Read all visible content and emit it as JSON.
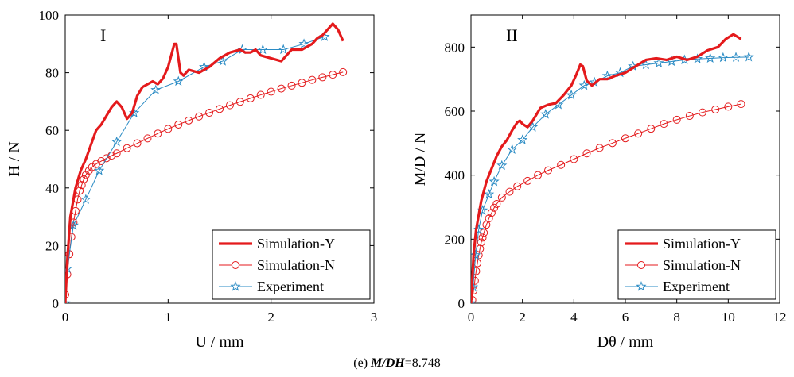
{
  "caption": {
    "prefix": "(e) ",
    "mdh_label": "M/DH",
    "value_text": "=8.748"
  },
  "colors": {
    "simY": "#e41a1c",
    "simN": "#e41a1c",
    "exp": "#2a8bc4",
    "axis": "#000000"
  },
  "chart_data": [
    {
      "type": "line",
      "panel_label": "I",
      "xlabel": "U / mm",
      "ylabel": "H / N",
      "xlim": [
        0,
        3
      ],
      "ylim": [
        0,
        100
      ],
      "xticks": [
        0,
        1,
        2,
        3
      ],
      "yticks": [
        0,
        20,
        40,
        60,
        80,
        100
      ],
      "grid": false,
      "legend_position": "bottom-right",
      "series": [
        {
          "name": "Simulation-Y",
          "style": "thick-line",
          "x": [
            0,
            0.02,
            0.05,
            0.1,
            0.15,
            0.2,
            0.25,
            0.3,
            0.35,
            0.4,
            0.45,
            0.5,
            0.55,
            0.6,
            0.65,
            0.7,
            0.75,
            0.8,
            0.85,
            0.9,
            0.95,
            1.0,
            1.03,
            1.06,
            1.08,
            1.1,
            1.12,
            1.15,
            1.2,
            1.3,
            1.4,
            1.5,
            1.6,
            1.7,
            1.75,
            1.8,
            1.85,
            1.9,
            2.0,
            2.1,
            2.15,
            2.2,
            2.3,
            2.4,
            2.45,
            2.5,
            2.55,
            2.6,
            2.65,
            2.7
          ],
          "y": [
            0,
            15,
            30,
            40,
            46,
            50,
            55,
            60,
            62,
            65,
            68,
            70,
            68,
            64,
            66,
            72,
            75,
            76,
            77,
            76,
            78,
            82,
            86,
            90,
            90,
            85,
            80,
            79,
            81,
            80,
            82,
            85,
            87,
            88,
            87,
            87,
            88,
            86,
            85,
            84,
            86,
            88,
            88,
            90,
            92,
            93,
            95,
            97,
            95,
            91
          ]
        },
        {
          "name": "Simulation-N",
          "style": "circles",
          "x": [
            0,
            0.02,
            0.04,
            0.06,
            0.08,
            0.1,
            0.12,
            0.14,
            0.16,
            0.18,
            0.2,
            0.23,
            0.26,
            0.3,
            0.35,
            0.4,
            0.45,
            0.5,
            0.6,
            0.7,
            0.8,
            0.9,
            1.0,
            1.1,
            1.2,
            1.3,
            1.4,
            1.5,
            1.6,
            1.7,
            1.8,
            1.9,
            2.0,
            2.1,
            2.2,
            2.3,
            2.4,
            2.5,
            2.6,
            2.7
          ],
          "y": [
            3,
            10,
            17,
            23,
            28,
            32,
            36,
            39,
            41,
            43,
            44.5,
            46,
            47.2,
            48.3,
            49.3,
            50.3,
            51.2,
            52,
            53.8,
            55.5,
            57.2,
            58.9,
            60.5,
            62,
            63.4,
            64.8,
            66.1,
            67.4,
            68.7,
            69.9,
            71.1,
            72.3,
            73.4,
            74.5,
            75.5,
            76.5,
            77.5,
            78.4,
            79.3,
            80.2
          ]
        },
        {
          "name": "Experiment",
          "style": "line-stars",
          "x": [
            0,
            0.02,
            0.08,
            0.2,
            0.33,
            0.5,
            0.67,
            0.88,
            1.1,
            1.35,
            1.53,
            1.72,
            1.92,
            2.12,
            2.32,
            2.52
          ],
          "y": [
            0,
            12,
            27,
            36,
            46,
            56,
            66,
            74,
            77,
            82,
            84,
            88,
            88,
            88,
            90,
            92.5
          ]
        }
      ]
    },
    {
      "type": "line",
      "panel_label": "II",
      "xlabel": "Dθ / mm",
      "ylabel": "M/D / N",
      "xlim": [
        0,
        12
      ],
      "ylim": [
        0,
        900
      ],
      "xticks": [
        0,
        2,
        4,
        6,
        8,
        10,
        12
      ],
      "yticks": [
        0,
        200,
        400,
        600,
        800
      ],
      "grid": false,
      "legend_position": "bottom-right",
      "series": [
        {
          "name": "Simulation-Y",
          "style": "thick-line",
          "x": [
            0,
            0.1,
            0.2,
            0.4,
            0.6,
            0.8,
            1.0,
            1.2,
            1.4,
            1.6,
            1.8,
            1.9,
            2.0,
            2.2,
            2.4,
            2.7,
            3.0,
            3.3,
            3.6,
            3.9,
            4.1,
            4.25,
            4.35,
            4.5,
            4.7,
            5.0,
            5.3,
            5.6,
            6.0,
            6.4,
            6.8,
            7.2,
            7.6,
            8.0,
            8.4,
            8.8,
            9.2,
            9.6,
            9.9,
            10.2,
            10.5
          ],
          "y": [
            0,
            150,
            230,
            320,
            380,
            420,
            460,
            490,
            510,
            540,
            565,
            570,
            560,
            550,
            570,
            610,
            620,
            625,
            650,
            680,
            715,
            745,
            740,
            695,
            680,
            700,
            700,
            710,
            720,
            740,
            760,
            765,
            760,
            770,
            760,
            770,
            790,
            800,
            825,
            840,
            825
          ]
        },
        {
          "name": "Simulation-N",
          "style": "circles",
          "x": [
            0.05,
            0.1,
            0.15,
            0.2,
            0.25,
            0.3,
            0.35,
            0.4,
            0.45,
            0.5,
            0.6,
            0.7,
            0.8,
            0.9,
            1.0,
            1.2,
            1.5,
            1.8,
            2.2,
            2.6,
            3.0,
            3.5,
            4.0,
            4.5,
            5.0,
            5.5,
            6.0,
            6.5,
            7.0,
            7.5,
            8.0,
            8.5,
            9.0,
            9.5,
            10.0,
            10.5
          ],
          "y": [
            10,
            40,
            70,
            100,
            125,
            150,
            170,
            190,
            205,
            220,
            245,
            265,
            282,
            298,
            310,
            330,
            348,
            365,
            382,
            400,
            415,
            432,
            450,
            468,
            485,
            500,
            515,
            530,
            545,
            560,
            573,
            585,
            596,
            605,
            614,
            622
          ]
        },
        {
          "name": "Experiment",
          "style": "line-stars",
          "x": [
            0,
            0.08,
            0.18,
            0.3,
            0.45,
            0.7,
            0.9,
            1.2,
            1.6,
            2.0,
            2.4,
            2.9,
            3.4,
            3.9,
            4.4,
            4.8,
            5.3,
            5.8,
            6.3,
            6.8,
            7.3,
            7.8,
            8.3,
            8.8,
            9.3,
            9.8,
            10.3,
            10.8
          ],
          "y": [
            0,
            50,
            150,
            230,
            290,
            340,
            380,
            430,
            480,
            510,
            550,
            590,
            620,
            650,
            680,
            690,
            710,
            720,
            740,
            745,
            750,
            755,
            760,
            763,
            765,
            767,
            768,
            769
          ]
        }
      ]
    }
  ]
}
